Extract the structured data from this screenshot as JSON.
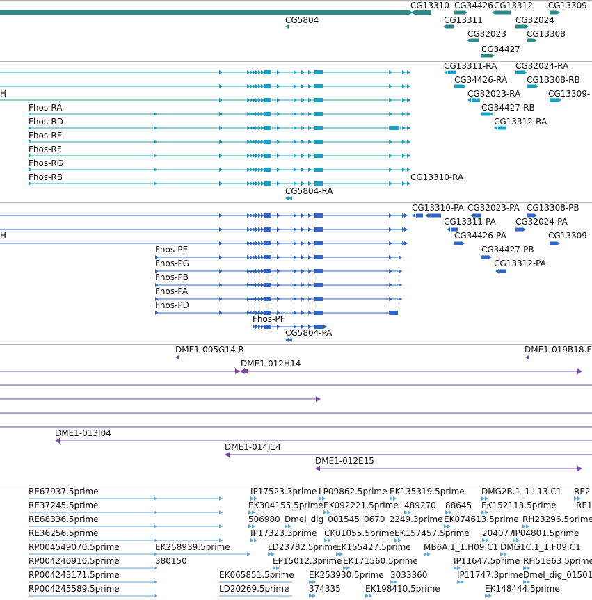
{
  "colors": {
    "gene": "#2a8a8a",
    "transcript": "#1aa0c0",
    "cds": "#2d66c8",
    "clone": "#7a4aa8",
    "est": "#5fa8d8",
    "separator": "#b4b4b4"
  },
  "glyph_icons": [
    "arrow-right-icon",
    "arrow-left-icon"
  ],
  "tracks": [
    {
      "id": "genes",
      "labels": [
        {
          "text": "CG13310"
        },
        {
          "text": "CG34426"
        },
        {
          "text": "CG13312"
        },
        {
          "text": "CG13309"
        },
        {
          "text": "CG5804"
        },
        {
          "text": "CG13311"
        },
        {
          "text": "CG32024"
        },
        {
          "text": "CG32023"
        },
        {
          "text": "CG13308"
        },
        {
          "text": "CG34427"
        }
      ]
    },
    {
      "id": "transcripts",
      "labels": [
        {
          "text": "CG13311-RA"
        },
        {
          "text": "CG32024-RA"
        },
        {
          "text": "CG34426-RA"
        },
        {
          "text": "CG13308-RB"
        },
        {
          "text": "H"
        },
        {
          "text": "CG32023-RA"
        },
        {
          "text": "CG13309-"
        },
        {
          "text": "Fhos-RA"
        },
        {
          "text": "CG34427-RB"
        },
        {
          "text": "Fhos-RD"
        },
        {
          "text": "CG13312-RA"
        },
        {
          "text": "Fhos-RE"
        },
        {
          "text": "Fhos-RF"
        },
        {
          "text": "Fhos-RG"
        },
        {
          "text": "Fhos-RB"
        },
        {
          "text": "CG13310-RA"
        },
        {
          "text": "CG5804-RA"
        }
      ]
    },
    {
      "id": "cds",
      "labels": [
        {
          "text": "CG13310-PA"
        },
        {
          "text": "CG32023-PA"
        },
        {
          "text": "CG13308-PB"
        },
        {
          "text": "CG13311-PA"
        },
        {
          "text": "CG32024-PA"
        },
        {
          "text": "H"
        },
        {
          "text": "CG34426-PA"
        },
        {
          "text": "CG13309-"
        },
        {
          "text": "Fhos-PE"
        },
        {
          "text": "CG34427-PB"
        },
        {
          "text": "Fhos-PG"
        },
        {
          "text": "CG13312-PA"
        },
        {
          "text": "Fhos-PB"
        },
        {
          "text": "Fhos-PA"
        },
        {
          "text": "Fhos-PD"
        },
        {
          "text": "Fhos-PF"
        },
        {
          "text": "CG5804-PA"
        }
      ]
    },
    {
      "id": "clones",
      "labels": [
        {
          "text": "DME1-005G14.R"
        },
        {
          "text": "DME1-019B18.F"
        },
        {
          "text": "DME1-012H14"
        },
        {
          "text": "DME1-013I04"
        },
        {
          "text": "DME1-014J14"
        },
        {
          "text": "DME1-012E15"
        }
      ]
    },
    {
      "id": "ests",
      "labels": [
        {
          "text": "RE67937.5prime"
        },
        {
          "text": "IP17523.3prime"
        },
        {
          "text": "LP09862.5prime"
        },
        {
          "text": "EK135319.5prime"
        },
        {
          "text": "DMG2B.1_1.L13.C1"
        },
        {
          "text": "RE2"
        },
        {
          "text": "RE37245.5prime"
        },
        {
          "text": "EK304155.5prime"
        },
        {
          "text": "EK092221.5prime"
        },
        {
          "text": "489270"
        },
        {
          "text": "88645"
        },
        {
          "text": "EK152113.5prime"
        },
        {
          "text": "RE1"
        },
        {
          "text": "RE68336.5prime"
        },
        {
          "text": "506980"
        },
        {
          "text": "Dmel_dig_001545_0670_2249.3prime"
        },
        {
          "text": "EK074613.5prime"
        },
        {
          "text": "RH23296.5prime"
        },
        {
          "text": "RE36256.5prime"
        },
        {
          "text": "IP17323.3prime"
        },
        {
          "text": "CK01055.5prime"
        },
        {
          "text": "EK157457.5prime"
        },
        {
          "text": "204077"
        },
        {
          "text": "IP04801.5prime"
        },
        {
          "text": "RP004549070.5prime"
        },
        {
          "text": "EK258939.5prime"
        },
        {
          "text": "LD23782.5prime"
        },
        {
          "text": "EK155427.5prime"
        },
        {
          "text": "MB6A.1_1.H09.C1"
        },
        {
          "text": "DMG1C.1_1.F09.C1"
        },
        {
          "text": "RP004240910.5prime"
        },
        {
          "text": "380150"
        },
        {
          "text": "EP15012.3prime"
        },
        {
          "text": "EK171560.5prime"
        },
        {
          "text": "IP11647.5prime"
        },
        {
          "text": "RH51863.5prime"
        },
        {
          "text": "RP004243171.5prime"
        },
        {
          "text": "EK065851.5prime"
        },
        {
          "text": "EK253930.5prime"
        },
        {
          "text": "3033360"
        },
        {
          "text": "IP11747.3prime"
        },
        {
          "text": "Dmel_dig_01501"
        },
        {
          "text": "RP004245589.5prime"
        },
        {
          "text": "LD20269.5prime"
        },
        {
          "text": "374335"
        },
        {
          "text": "EK198410.5prime"
        },
        {
          "text": "EK148444.5prime"
        }
      ]
    }
  ]
}
